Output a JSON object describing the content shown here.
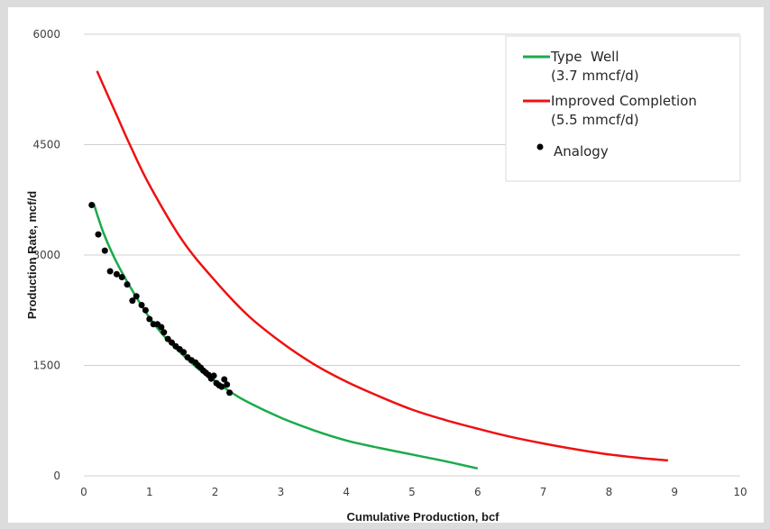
{
  "chart_data": {
    "type": "line",
    "xlabel": "Cumulative Production, bcf",
    "ylabel": "Production Rate, mcf/d",
    "xlim": [
      0,
      10
    ],
    "ylim": [
      0,
      6000
    ],
    "xticks": [
      "0",
      "1",
      "2",
      "3",
      "4",
      "5",
      "6",
      "7",
      "8",
      "9",
      "10"
    ],
    "yticks": [
      "0",
      "1500",
      "3000",
      "4500",
      "6000"
    ],
    "grid": "horizontal",
    "legend_position": "top-right",
    "series": [
      {
        "name": "Type  Well",
        "detail": "(3.7 mmcf/d)",
        "kind": "line",
        "color": "#1aab4b",
        "x": [
          0.15,
          0.3,
          0.5,
          0.75,
          1.0,
          1.25,
          1.5,
          1.75,
          2.0,
          2.25,
          2.5,
          3.0,
          3.5,
          4.0,
          4.5,
          5.0,
          5.5,
          6.0
        ],
        "y": [
          3700,
          3300,
          2900,
          2500,
          2150,
          1870,
          1650,
          1450,
          1290,
          1130,
          1000,
          790,
          620,
          480,
          380,
          290,
          200,
          100
        ]
      },
      {
        "name": "Improved Completion",
        "detail": "(5.5 mmcf/d)",
        "kind": "line",
        "color": "#ee1111",
        "x": [
          0.2,
          0.5,
          0.7,
          1.0,
          1.5,
          2.0,
          2.5,
          3.0,
          3.5,
          4.0,
          4.5,
          5.0,
          5.5,
          6.0,
          6.5,
          7.0,
          7.5,
          8.0,
          8.5,
          8.9
        ],
        "y": [
          5500,
          4900,
          4500,
          3950,
          3200,
          2650,
          2180,
          1820,
          1520,
          1280,
          1080,
          900,
          760,
          640,
          530,
          440,
          360,
          290,
          240,
          210
        ]
      },
      {
        "name": "Analogy",
        "kind": "scatter",
        "color": "#000000",
        "x": [
          0.12,
          0.22,
          0.32,
          0.4,
          0.5,
          0.58,
          0.66,
          0.74,
          0.8,
          0.88,
          0.94,
          1.0,
          1.06,
          1.12,
          1.18,
          1.22,
          1.28,
          1.34,
          1.4,
          1.46,
          1.52,
          1.58,
          1.64,
          1.7,
          1.74,
          1.78,
          1.82,
          1.86,
          1.9,
          1.94,
          1.98,
          2.02,
          2.06,
          2.1,
          2.14,
          2.18,
          2.22
        ],
        "y": [
          3680,
          3280,
          3060,
          2780,
          2740,
          2700,
          2600,
          2380,
          2440,
          2320,
          2250,
          2130,
          2060,
          2060,
          2020,
          1950,
          1860,
          1810,
          1760,
          1720,
          1680,
          1610,
          1570,
          1540,
          1500,
          1470,
          1430,
          1400,
          1370,
          1320,
          1360,
          1260,
          1230,
          1210,
          1310,
          1240,
          1130
        ]
      }
    ]
  }
}
